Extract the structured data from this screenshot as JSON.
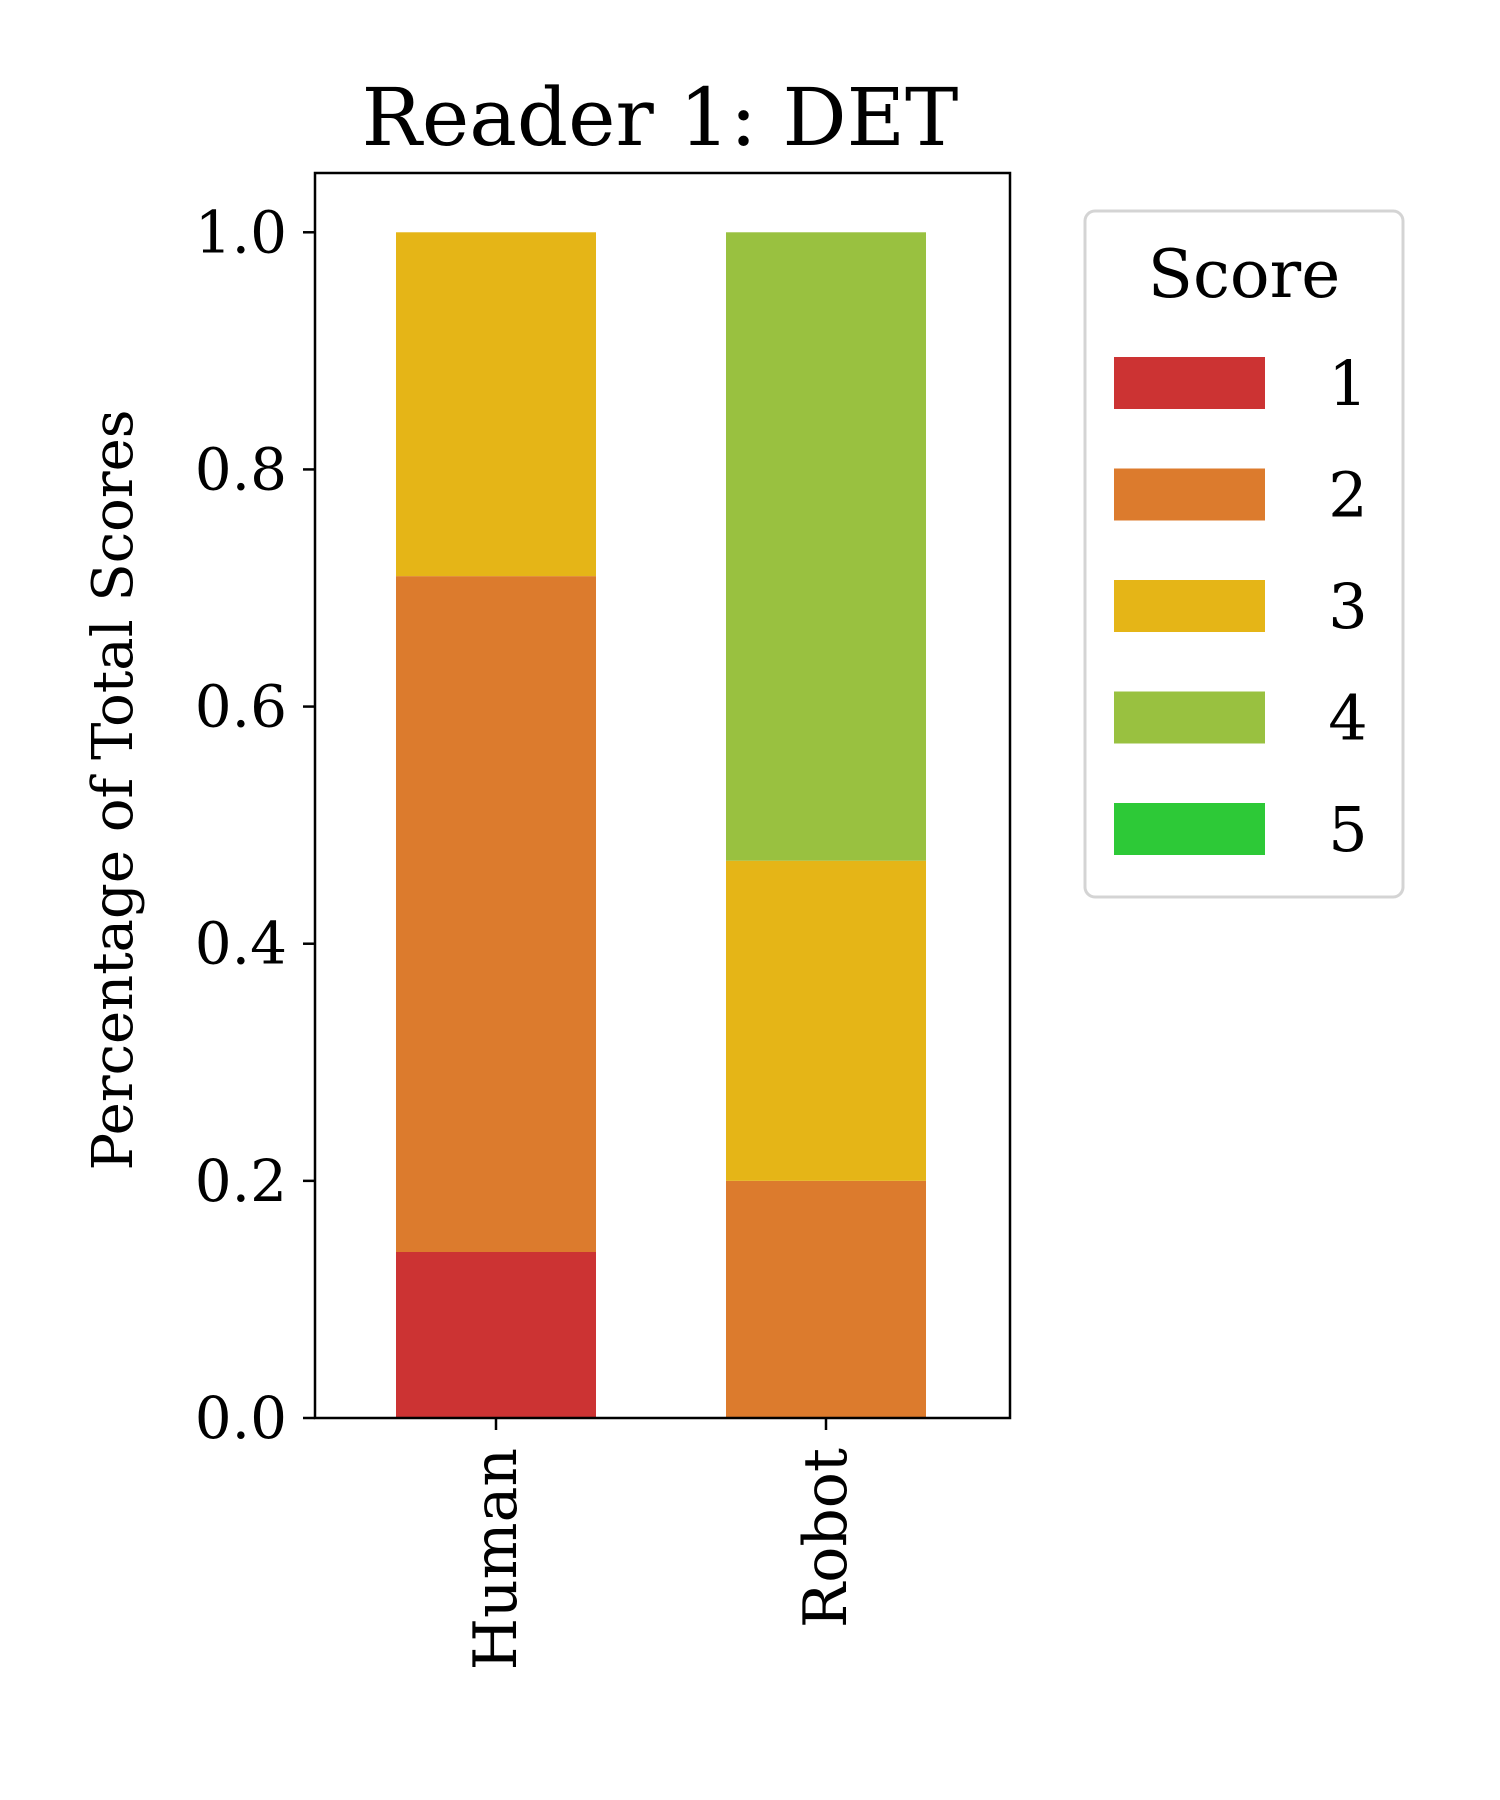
{
  "chart_data": {
    "type": "bar",
    "stacked": true,
    "title": "Reader 1: DET",
    "xlabel": "",
    "ylabel": "Percentage of Total Scores",
    "categories": [
      "Human",
      "Robot"
    ],
    "ylim": [
      0,
      1.05
    ],
    "yticks": [
      "0.0",
      "0.2",
      "0.4",
      "0.6",
      "0.8",
      "1.0"
    ],
    "legend_title": "Score",
    "legend_position": "outside-right",
    "grid": false,
    "series": [
      {
        "name": "1",
        "color": "#CC3333",
        "values": [
          0.14,
          0.0
        ]
      },
      {
        "name": "2",
        "color": "#DC7B2D",
        "values": [
          0.57,
          0.2
        ]
      },
      {
        "name": "3",
        "color": "#E5B517",
        "values": [
          0.29,
          0.27
        ]
      },
      {
        "name": "4",
        "color": "#99C140",
        "values": [
          0.0,
          0.53
        ]
      },
      {
        "name": "5",
        "color": "#2DC937",
        "values": [
          0.0,
          0.0
        ]
      }
    ]
  }
}
